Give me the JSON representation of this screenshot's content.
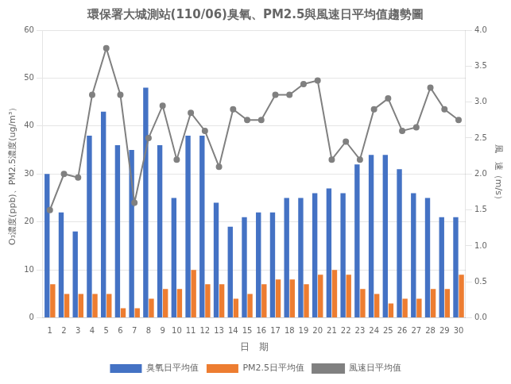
{
  "chart_data": {
    "type": "bar",
    "title": "環保署大城測站(110/06)臭氧、PM2.5與風速日平均值趨勢圖",
    "xlabel": "日　期",
    "ylabel": "O₃濃度(ppb)、PM2.5濃度(ug/m³）",
    "y2label": "風　速（m/s）",
    "categories": [
      1,
      2,
      3,
      4,
      5,
      6,
      7,
      8,
      9,
      10,
      11,
      12,
      13,
      14,
      15,
      16,
      17,
      18,
      19,
      20,
      21,
      22,
      23,
      24,
      25,
      26,
      27,
      28,
      29,
      30
    ],
    "series": [
      {
        "name": "臭氧日平均值",
        "type": "bar",
        "color": "#4472C4",
        "values": [
          30,
          22,
          18,
          38,
          43,
          36,
          35,
          48,
          36,
          25,
          38,
          38,
          24,
          19,
          21,
          22,
          22,
          25,
          25,
          26,
          27,
          26,
          32,
          34,
          34,
          31,
          26,
          25,
          21,
          21
        ]
      },
      {
        "name": "PM2.5日平均值",
        "type": "bar",
        "color": "#ED7D31",
        "values": [
          7,
          5,
          5,
          5,
          5,
          2,
          2,
          4,
          6,
          6,
          10,
          7,
          7,
          4,
          5,
          7,
          8,
          8,
          7,
          9,
          10,
          9,
          6,
          5,
          3,
          4,
          4,
          6,
          6,
          9
        ]
      },
      {
        "name": "風速日平均值",
        "type": "line",
        "color": "#808080",
        "marker": "circle",
        "axis": "y2",
        "values": [
          1.5,
          2.0,
          1.95,
          3.1,
          3.75,
          3.1,
          1.6,
          2.5,
          2.95,
          2.2,
          2.85,
          2.6,
          2.1,
          2.9,
          2.75,
          2.75,
          3.1,
          3.1,
          3.25,
          3.3,
          2.2,
          2.45,
          2.2,
          2.9,
          3.05,
          2.6,
          2.65,
          3.2,
          2.9,
          2.75
        ]
      }
    ],
    "ylim": [
      0,
      60
    ],
    "yticks": [
      0,
      10,
      20,
      30,
      40,
      50,
      60
    ],
    "y2lim": [
      0,
      4
    ],
    "y2ticks": [
      {
        "value": 0,
        "label": "0.0"
      },
      0.5,
      {
        "value": 1,
        "label": "1.0"
      },
      1.5,
      {
        "value": 2,
        "label": "2.0"
      },
      2.5,
      {
        "value": 3,
        "label": "3.0"
      },
      3.5,
      {
        "value": 4,
        "label": "4.0"
      }
    ],
    "grid": true,
    "legend": "bottom"
  }
}
